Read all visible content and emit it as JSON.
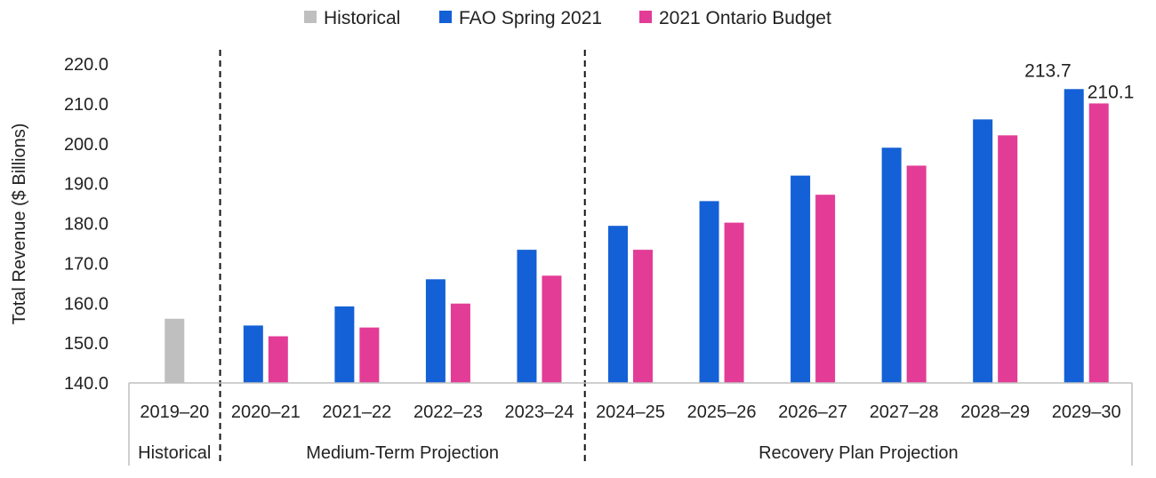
{
  "chart_data": {
    "type": "bar",
    "ylabel": "Total Revenue ($ Billions)",
    "ylim": [
      140,
      220
    ],
    "yticks": [
      "140.0",
      "150.0",
      "160.0",
      "170.0",
      "180.0",
      "190.0",
      "200.0",
      "210.0",
      "220.0"
    ],
    "grid": false,
    "legend_position": "top-center",
    "categories": [
      "2019–20",
      "2020–21",
      "2021–22",
      "2022–23",
      "2023–24",
      "2024–25",
      "2025–26",
      "2026–27",
      "2027–28",
      "2028–29",
      "2029–30"
    ],
    "groups": [
      {
        "label": "Historical",
        "categories": [
          "2019–20"
        ]
      },
      {
        "label": "Medium-Term Projection",
        "categories": [
          "2020–21",
          "2021–22",
          "2022–23",
          "2023–24"
        ]
      },
      {
        "label": "Recovery Plan Projection",
        "categories": [
          "2024–25",
          "2025–26",
          "2026–27",
          "2027–28",
          "2028–29",
          "2029–30"
        ]
      }
    ],
    "series": [
      {
        "name": "Historical",
        "color": "#bfbfbf",
        "values": [
          156.1,
          null,
          null,
          null,
          null,
          null,
          null,
          null,
          null,
          null,
          null
        ]
      },
      {
        "name": "FAO Spring 2021",
        "color": "#1460d6",
        "values": [
          null,
          154.4,
          159.2,
          166.0,
          173.4,
          179.4,
          185.6,
          192.0,
          199.0,
          206.1,
          213.7
        ]
      },
      {
        "name": "2021 Ontario Budget",
        "color": "#e33c96",
        "values": [
          null,
          151.7,
          153.9,
          159.9,
          166.9,
          173.4,
          180.2,
          187.2,
          194.5,
          202.1,
          210.1
        ]
      }
    ],
    "data_labels": [
      {
        "series": "FAO Spring 2021",
        "category": "2029–30",
        "text": "213.7"
      },
      {
        "series": "2021 Ontario Budget",
        "category": "2029–30",
        "text": "210.1"
      }
    ]
  }
}
